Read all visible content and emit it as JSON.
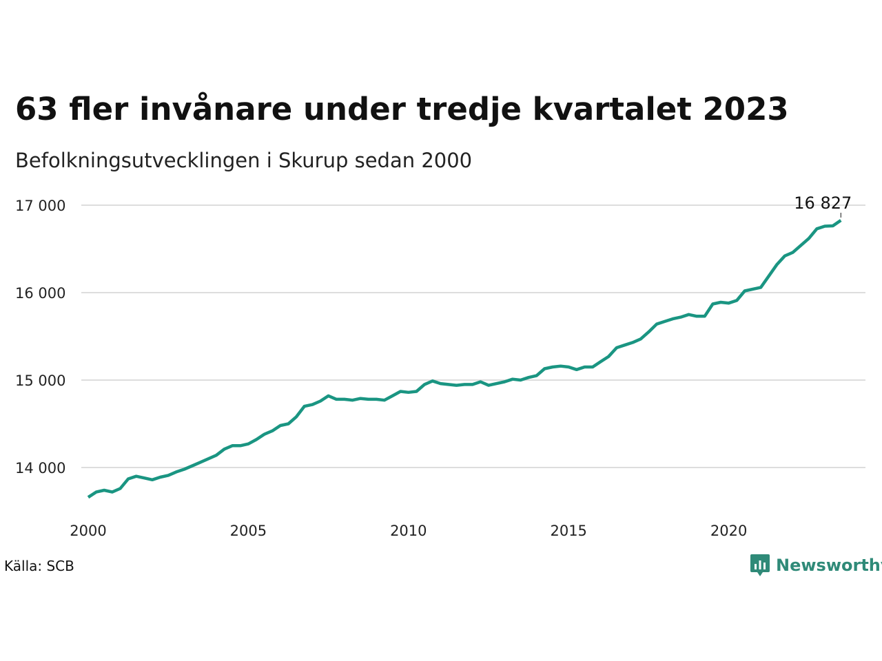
{
  "header": {
    "title": "63 fler invånare under tredje kvartalet 2023",
    "subtitle": "Befolkningsutvecklingen i Skurup sedan 2000"
  },
  "footer": {
    "source": "Källa: SCB",
    "brand": "Newsworthy"
  },
  "colors": {
    "line": "#1a9582",
    "grid": "#dddddd",
    "brand": "#2f8a78"
  },
  "icons": {
    "brand_logo": "newsworthy-chart-bubble-icon"
  },
  "chart_data": {
    "type": "line",
    "title": "63 fler invånare under tredje kvartalet 2023",
    "subtitle": "Befolkningsutvecklingen i Skurup sedan 2000",
    "xlabel": "",
    "ylabel": "",
    "xlim": [
      2000,
      2024.5
    ],
    "ylim": [
      13550,
      17150
    ],
    "x_ticks": [
      2000,
      2005,
      2010,
      2015,
      2020
    ],
    "x_tick_labels": [
      "2000",
      "2005",
      "2010",
      "2015",
      "2020"
    ],
    "y_ticks": [
      14000,
      15000,
      16000,
      17000
    ],
    "y_tick_labels": [
      "14 000",
      "15 000",
      "16 000",
      "17 000"
    ],
    "grid": "horizontal",
    "legend": "none",
    "end_label": "16 827",
    "series": [
      {
        "x": [
          2000.0,
          2000.25,
          2000.5,
          2000.75,
          2001.0,
          2001.25,
          2001.5,
          2001.75,
          2002.0,
          2002.25,
          2002.5,
          2002.75,
          2003.0,
          2003.25,
          2003.5,
          2003.75,
          2004.0,
          2004.25,
          2004.5,
          2004.75,
          2005.0,
          2005.25,
          2005.5,
          2005.75,
          2006.0,
          2006.25,
          2006.5,
          2006.75,
          2007.0,
          2007.25,
          2007.5,
          2007.75,
          2008.0,
          2008.25,
          2008.5,
          2008.75,
          2009.0,
          2009.25,
          2009.5,
          2009.75,
          2010.0,
          2010.25,
          2010.5,
          2010.75,
          2011.0,
          2011.25,
          2011.5,
          2011.75,
          2012.0,
          2012.25,
          2012.5,
          2012.75,
          2013.0,
          2013.25,
          2013.5,
          2013.75,
          2014.0,
          2014.25,
          2014.5,
          2014.75,
          2015.0,
          2015.25,
          2015.5,
          2015.75,
          2016.0,
          2016.25,
          2016.5,
          2016.75,
          2017.0,
          2017.25,
          2017.5,
          2017.75,
          2018.0,
          2018.25,
          2018.5,
          2018.75,
          2019.0,
          2019.25,
          2019.5,
          2019.75,
          2020.0,
          2020.25,
          2020.5,
          2020.75,
          2021.0,
          2021.25,
          2021.5,
          2021.75,
          2022.0,
          2022.25,
          2022.5,
          2022.75,
          2023.0,
          2023.25,
          2023.5
        ],
        "values": [
          13660,
          13720,
          13740,
          13720,
          13760,
          13870,
          13900,
          13880,
          13860,
          13890,
          13910,
          13950,
          13980,
          14020,
          14060,
          14100,
          14140,
          14210,
          14250,
          14250,
          14270,
          14320,
          14380,
          14420,
          14480,
          14500,
          14580,
          14700,
          14720,
          14760,
          14820,
          14780,
          14780,
          14770,
          14790,
          14780,
          14780,
          14770,
          14820,
          14870,
          14860,
          14870,
          14950,
          14990,
          14960,
          14950,
          14940,
          14950,
          14950,
          14980,
          14940,
          14960,
          14980,
          15010,
          15000,
          15030,
          15050,
          15130,
          15150,
          15160,
          15150,
          15120,
          15150,
          15150,
          15210,
          15270,
          15370,
          15400,
          15430,
          15470,
          15550,
          15640,
          15670,
          15700,
          15720,
          15750,
          15730,
          15730,
          15870,
          15890,
          15880,
          15910,
          16020,
          16040,
          16060,
          16190,
          16320,
          16420,
          16460,
          16540,
          16620,
          16730,
          16760,
          16764,
          16827
        ]
      }
    ]
  }
}
